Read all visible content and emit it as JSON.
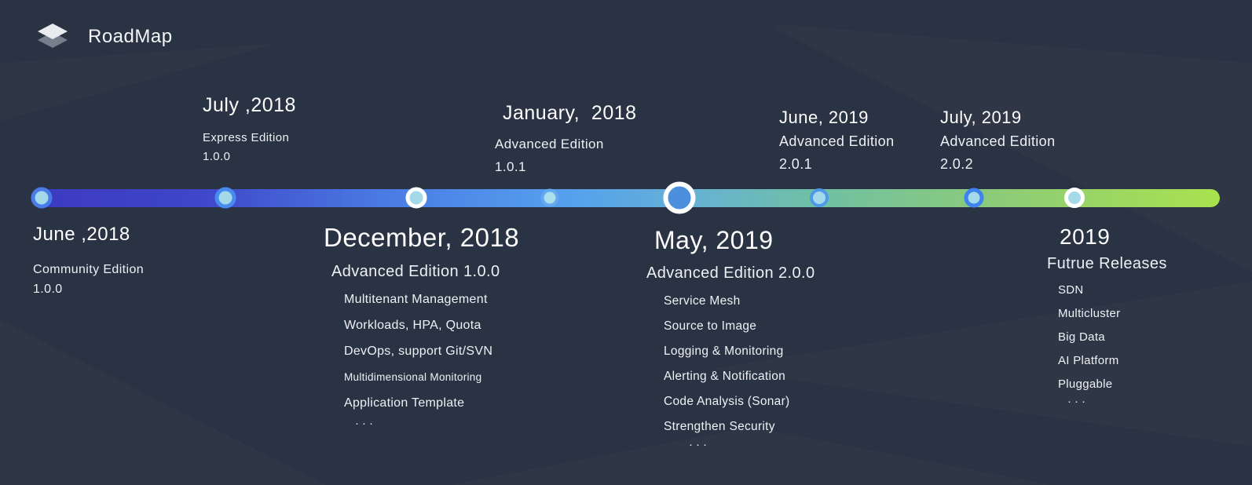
{
  "header": {
    "title": "RoadMap",
    "logo_icon": "layers-icon"
  },
  "colors": {
    "background": "#2a3343",
    "bar_gradient_start": "#3c3ac0",
    "bar_gradient_mid_blue": "#55a0ee",
    "bar_gradient_teal": "#6fc0a4",
    "bar_gradient_end": "#a9e24d",
    "dot_fill_cyan": "#a3d9e8",
    "dot_ring_blue": "#488cf2",
    "dot_ring_white": "#ffffff",
    "current_dot_fill": "#4a90dd",
    "text": "#ffffff"
  },
  "milestones_above": [
    {
      "date": "July ,2018",
      "edition": "Express Edition",
      "version": "1.0.0"
    },
    {
      "date": "January,  2018",
      "edition": "Advanced Edition",
      "version": "1.0.1"
    },
    {
      "date": "June, 2019",
      "edition": "Advanced Edition",
      "version": "2.0.1"
    },
    {
      "date": "July, 2019",
      "edition": "Advanced Edition",
      "version": "2.0.2"
    }
  ],
  "milestones_below": [
    {
      "date": "June ,2018",
      "edition": "Community Edition",
      "version": "1.0.0"
    },
    {
      "date": "December, 2018",
      "edition": "Advanced Edition 1.0.0",
      "features": [
        "Multitenant Management",
        "Workloads, HPA, Quota",
        "DevOps, support Git/SVN",
        {
          "label": "Multidimensional Monitoring",
          "small": true
        },
        "Application Template"
      ],
      "ellipsis": "···"
    },
    {
      "date": "May, 2019",
      "edition": "Advanced Edition 2.0.0",
      "features": [
        "Service Mesh",
        "Source to Image",
        "Logging & Monitoring",
        "Alerting & Notification",
        "Code Analysis (Sonar)",
        "Strengthen Security"
      ],
      "ellipsis": "···"
    },
    {
      "date": "2019",
      "edition": "Futrue Releases",
      "features": [
        "SDN",
        "Multicluster",
        "Big Data",
        "AI Platform",
        "Pluggable"
      ],
      "ellipsis": "···"
    }
  ]
}
